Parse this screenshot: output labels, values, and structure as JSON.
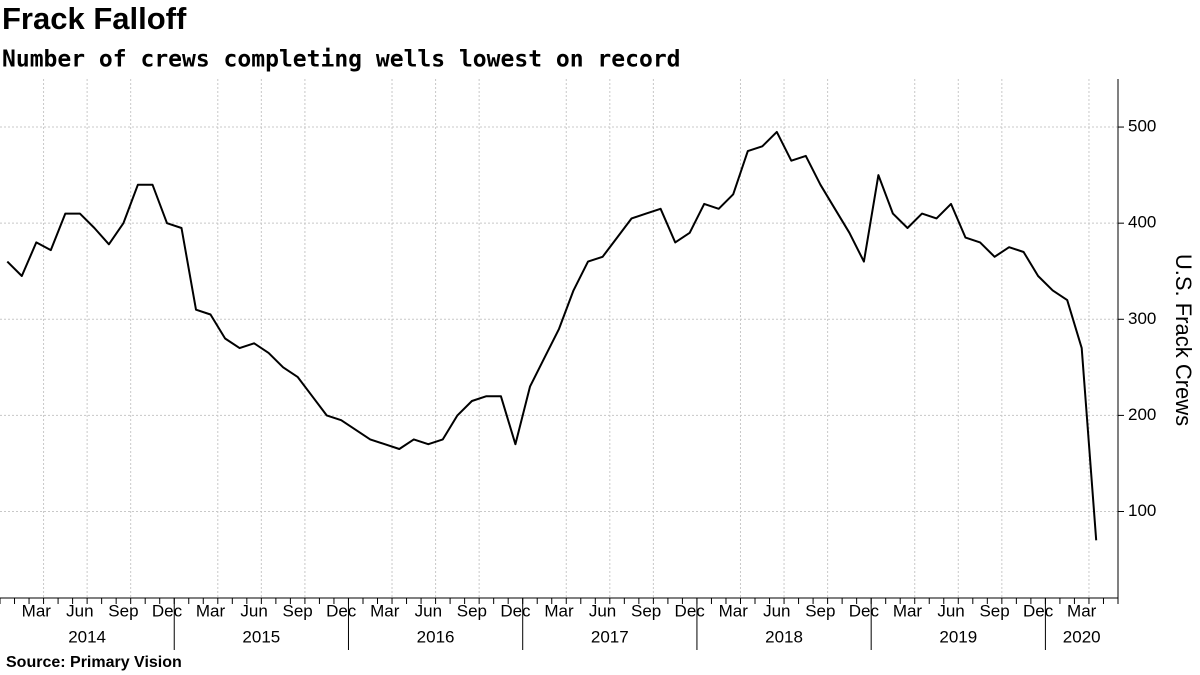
{
  "chart_data": {
    "type": "line",
    "title": "Frack Falloff",
    "subtitle": "Number of crews completing wells lowest on record",
    "source": "Source: Primary Vision",
    "y_label": "U.S. Frack Crews",
    "color": "#000000",
    "grid": true,
    "xlim": [
      "2014-01",
      "2020-06"
    ],
    "ylim": [
      10,
      550
    ],
    "yticks": [
      100,
      200,
      300,
      400,
      500
    ],
    "x": [
      "2014-01",
      "2014-02",
      "2014-03",
      "2014-04",
      "2014-05",
      "2014-06",
      "2014-07",
      "2014-08",
      "2014-09",
      "2014-10",
      "2014-11",
      "2014-12",
      "2015-01",
      "2015-02",
      "2015-03",
      "2015-04",
      "2015-05",
      "2015-06",
      "2015-07",
      "2015-08",
      "2015-09",
      "2015-10",
      "2015-11",
      "2015-12",
      "2016-01",
      "2016-02",
      "2016-03",
      "2016-04",
      "2016-05",
      "2016-06",
      "2016-07",
      "2016-08",
      "2016-09",
      "2016-10",
      "2016-11",
      "2016-12",
      "2017-01",
      "2017-02",
      "2017-03",
      "2017-04",
      "2017-05",
      "2017-06",
      "2017-07",
      "2017-08",
      "2017-09",
      "2017-10",
      "2017-11",
      "2017-12",
      "2018-01",
      "2018-02",
      "2018-03",
      "2018-04",
      "2018-05",
      "2018-06",
      "2018-07",
      "2018-08",
      "2018-09",
      "2018-10",
      "2018-11",
      "2018-12",
      "2019-01",
      "2019-02",
      "2019-03",
      "2019-04",
      "2019-05",
      "2019-06",
      "2019-07",
      "2019-08",
      "2019-09",
      "2019-10",
      "2019-11",
      "2019-12",
      "2020-01",
      "2020-02",
      "2020-03",
      "2020-04"
    ],
    "values": [
      360,
      345,
      380,
      372,
      410,
      410,
      395,
      378,
      400,
      440,
      440,
      400,
      395,
      310,
      305,
      280,
      270,
      275,
      265,
      250,
      240,
      220,
      200,
      195,
      185,
      175,
      170,
      165,
      175,
      170,
      175,
      200,
      215,
      220,
      220,
      170,
      230,
      260,
      290,
      330,
      360,
      365,
      385,
      405,
      410,
      415,
      380,
      390,
      420,
      415,
      430,
      475,
      480,
      495,
      465,
      470,
      440,
      415,
      390,
      360,
      450,
      410,
      395,
      410,
      405,
      420,
      385,
      380,
      365,
      375,
      370,
      345,
      330,
      320,
      270,
      70
    ],
    "x_tick_labels": [
      {
        "value": "2014-03",
        "label": "Mar"
      },
      {
        "value": "2014-06",
        "label": "Jun"
      },
      {
        "value": "2014-09",
        "label": "Sep"
      },
      {
        "value": "2014-12",
        "label": "Dec"
      },
      {
        "value": "2015-03",
        "label": "Mar"
      },
      {
        "value": "2015-06",
        "label": "Jun"
      },
      {
        "value": "2015-09",
        "label": "Sep"
      },
      {
        "value": "2015-12",
        "label": "Dec"
      },
      {
        "value": "2016-03",
        "label": "Mar"
      },
      {
        "value": "2016-06",
        "label": "Jun"
      },
      {
        "value": "2016-09",
        "label": "Sep"
      },
      {
        "value": "2016-12",
        "label": "Dec"
      },
      {
        "value": "2017-03",
        "label": "Mar"
      },
      {
        "value": "2017-06",
        "label": "Jun"
      },
      {
        "value": "2017-09",
        "label": "Sep"
      },
      {
        "value": "2017-12",
        "label": "Dec"
      },
      {
        "value": "2018-03",
        "label": "Mar"
      },
      {
        "value": "2018-06",
        "label": "Jun"
      },
      {
        "value": "2018-09",
        "label": "Sep"
      },
      {
        "value": "2018-12",
        "label": "Dec"
      },
      {
        "value": "2019-03",
        "label": "Mar"
      },
      {
        "value": "2019-06",
        "label": "Jun"
      },
      {
        "value": "2019-09",
        "label": "Sep"
      },
      {
        "value": "2019-12",
        "label": "Dec"
      },
      {
        "value": "2020-03",
        "label": "Mar"
      }
    ],
    "years": [
      "2014",
      "2015",
      "2016",
      "2017",
      "2018",
      "2019",
      "2020"
    ]
  }
}
